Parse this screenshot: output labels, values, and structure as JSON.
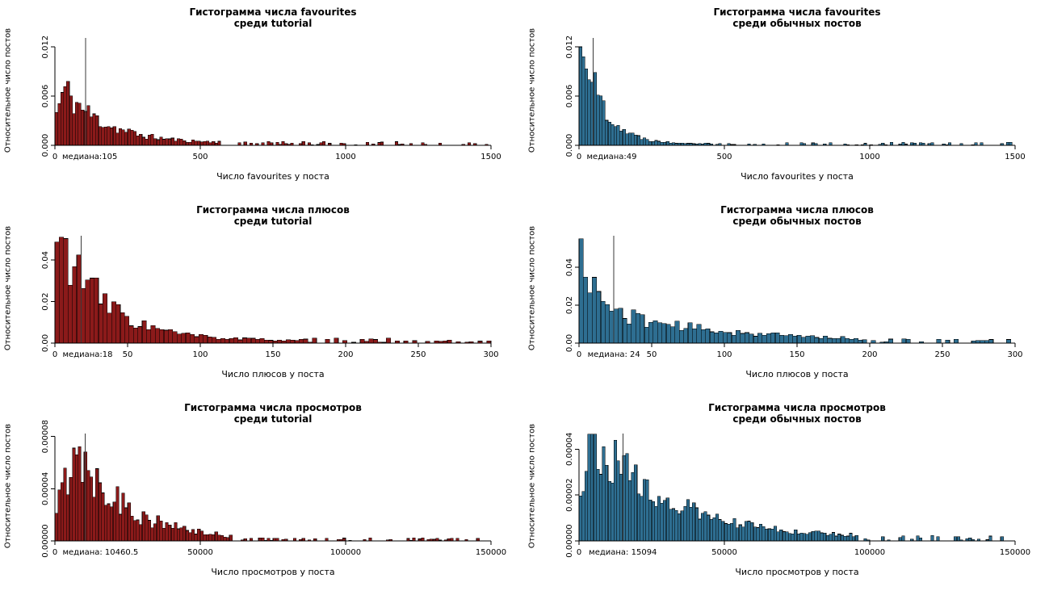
{
  "page": {
    "background": "#ffffff"
  },
  "chart_data": [
    {
      "type": "bar",
      "subtype": "histogram",
      "title": "Гистограмма числа favourites среди tutorial",
      "title_line1": "Гистограмма числа favourites",
      "title_line2": "среди tutorial",
      "xlabel": "Число favourites у поста",
      "ylabel": "Относительное число постов",
      "bar_color": "#8B1A1A",
      "bar_border": "#000000",
      "xlim": [
        0,
        1500
      ],
      "ylim_render": 0.0133,
      "xticks": [
        0,
        500,
        1000,
        1500
      ],
      "xtick_labels": [
        "0",
        "500",
        "1000",
        "1500"
      ],
      "yticks": [
        0,
        0.006,
        0.012
      ],
      "ytick_labels": [
        "0.000",
        "0.006",
        "0.012"
      ],
      "median": 105,
      "median_label": "медиана:105",
      "density_estimate": {
        "x": [
          0,
          30,
          50,
          105,
          200,
          300,
          500,
          800,
          1000,
          1500
        ],
        "y": [
          0.004,
          0.0065,
          0.006,
          0.0035,
          0.002,
          0.001,
          0.0004,
          0.0002,
          0.00015,
          5e-05
        ]
      },
      "bins": {
        "n": 150,
        "mode": 3,
        "start": 0.0035,
        "peak": 0.0065,
        "tau": 14,
        "noise": 0.35,
        "tail": 0.00025,
        "sparse_after": 55,
        "sparse_prob": 0.55,
        "cap": 0.0078,
        "seed": 11
      }
    },
    {
      "type": "bar",
      "subtype": "histogram",
      "title": "Гистограмма числа favourites среди обычных постов",
      "title_line1": "Гистограмма числа favourites",
      "title_line2": "среди обычных постов",
      "xlabel": "Число favourites у поста",
      "ylabel": "Относительное число постов",
      "bar_color": "#2E6E91",
      "bar_border": "#000000",
      "xlim": [
        0,
        1500
      ],
      "ylim_render": 0.0133,
      "xticks": [
        0,
        500,
        1000,
        1500
      ],
      "xtick_labels": [
        "0",
        "500",
        "1000",
        "1500"
      ],
      "yticks": [
        0,
        0.006,
        0.012
      ],
      "ytick_labels": [
        "0.000",
        "0.006",
        "0.012"
      ],
      "median": 49,
      "median_label": "медиана:49",
      "density_estimate": {
        "x": [
          0,
          10,
          49,
          100,
          200,
          300,
          500,
          1000,
          1500
        ],
        "y": [
          0.0113,
          0.0125,
          0.0068,
          0.003,
          0.0009,
          0.0004,
          0.0002,
          0.0001,
          5e-05
        ]
      },
      "bins": {
        "n": 150,
        "mode": 1,
        "start": 0.01,
        "peak": 0.0125,
        "tau": 7,
        "noise": 0.28,
        "tail": 0.0002,
        "sparse_after": 45,
        "sparse_prob": 0.55,
        "cap": 0.0127,
        "seed": 22
      }
    },
    {
      "type": "bar",
      "subtype": "histogram",
      "title": "Гистограмма числа плюсов среди tutorial",
      "title_line1": "Гистограмма числа плюсов",
      "title_line2": "среди tutorial",
      "xlabel": "Число плюсов у поста",
      "ylabel": "Относительное число постов",
      "bar_color": "#8B1A1A",
      "bar_border": "#000000",
      "xlim": [
        0,
        300
      ],
      "ylim_render": 0.0525,
      "xticks": [
        0,
        50,
        100,
        150,
        200,
        250,
        300
      ],
      "xtick_labels": [
        "0",
        "50",
        "100",
        "150",
        "200",
        "250",
        "300"
      ],
      "yticks": [
        0,
        0.02,
        0.04
      ],
      "ytick_labels": [
        "0.00",
        "0.02",
        "0.04"
      ],
      "median": 18,
      "median_label": "медиана:18",
      "density_estimate": {
        "x": [
          0,
          5,
          18,
          50,
          100,
          150,
          200,
          300
        ],
        "y": [
          0.047,
          0.05,
          0.024,
          0.011,
          0.0025,
          0.0012,
          0.0008,
          0.0003
        ]
      },
      "bins": {
        "n": 100,
        "mode": 1,
        "start": 0.044,
        "peak": 0.05,
        "tau": 10,
        "noise": 0.35,
        "tail": 0.0012,
        "sparse_after": 55,
        "sparse_prob": 0.5,
        "cap": 0.051,
        "seed": 33
      }
    },
    {
      "type": "bar",
      "subtype": "histogram",
      "title": "Гистограмма числа плюсов среди обычных постов",
      "title_line1": "Гистограмма числа плюсов",
      "title_line2": "среди обычных постов",
      "xlabel": "Число плюсов у поста",
      "ylabel": "Относительное число постов",
      "bar_color": "#2E6E91",
      "bar_border": "#000000",
      "xlim": [
        0,
        300
      ],
      "ylim_render": 0.0575,
      "xticks": [
        0,
        50,
        100,
        150,
        200,
        250,
        300
      ],
      "xtick_labels": [
        "0",
        "50",
        "100",
        "150",
        "200",
        "250",
        "300"
      ],
      "yticks": [
        0,
        0.02,
        0.04
      ],
      "ytick_labels": [
        "0.00",
        "0.02",
        "0.04"
      ],
      "median": 24,
      "median_label": "медиана: 24",
      "density_estimate": {
        "x": [
          0,
          3,
          24,
          50,
          100,
          150,
          200,
          300
        ],
        "y": [
          0.055,
          0.042,
          0.016,
          0.009,
          0.005,
          0.002,
          0.001,
          0.0004
        ]
      },
      "bins": {
        "n": 100,
        "mode": 0,
        "start": 0,
        "peak": 0.035,
        "tau": 2.5,
        "peak2": 0.02,
        "tau2": 24,
        "noise": 0.3,
        "tail": 0.0012,
        "sparse_after": 62,
        "sparse_prob": 0.5,
        "cap": 0.046,
        "spike0": 0.055,
        "seed": 44
      }
    },
    {
      "type": "bar",
      "subtype": "histogram",
      "title": "Гистограмма числа просмотров среди tutorial",
      "title_line1": "Гистограмма числа просмотров",
      "title_line2": "среди tutorial",
      "xlabel": "Число просмотров у поста",
      "ylabel": "Относительное число постов",
      "bar_color": "#8B1A1A",
      "bar_border": "#000000",
      "xlim": [
        0,
        150000
      ],
      "ylim_render": 8.35e-05,
      "xticks": [
        0,
        50000,
        100000,
        150000
      ],
      "xtick_labels": [
        "0",
        "50000",
        "100000",
        "150000"
      ],
      "yticks": [
        0,
        4e-05,
        8e-05
      ],
      "ytick_labels": [
        "0.00000",
        "0.00004",
        "0.00008"
      ],
      "median": 10460.5,
      "median_label": "медиана: 10460.5",
      "density_estimate": {
        "x": [
          0,
          4000,
          8000,
          10460,
          20000,
          50000,
          100000,
          150000
        ],
        "y": [
          2.2e-05,
          6e-05,
          7.5e-05,
          6.2e-05,
          3.3e-05,
          5e-06,
          2e-06,
          1e-06
        ]
      },
      "bins": {
        "n": 150,
        "mode": 7,
        "start": 1.8e-05,
        "peak": 7.5e-05,
        "tau": 16,
        "noise": 0.4,
        "tail": 1.2e-06,
        "sparse_after": 60,
        "sparse_prob": 0.55,
        "cap": 7.9e-05,
        "seed": 55
      }
    },
    {
      "type": "bar",
      "subtype": "histogram",
      "title": "Гистограмма числа просмотров среди обычных постов",
      "title_line1": "Гистограмма числа просмотров",
      "title_line2": "среди обычных постов",
      "xlabel": "Число просмотров у поста",
      "ylabel": "Относительное число постов",
      "bar_color": "#2E6E91",
      "bar_border": "#000000",
      "xlim": [
        0,
        150000
      ],
      "ylim_render": 4.75e-05,
      "xticks": [
        0,
        50000,
        100000,
        150000
      ],
      "xtick_labels": [
        "0",
        "50000",
        "100000",
        "150000"
      ],
      "yticks": [
        0,
        2e-05,
        4e-05
      ],
      "ytick_labels": [
        "0.00000",
        "0.00002",
        "0.00004"
      ],
      "median": 15094,
      "median_label": "медиана: 15094",
      "density_estimate": {
        "x": [
          0,
          3000,
          6000,
          15094,
          30000,
          50000,
          100000,
          150000
        ],
        "y": [
          2.3e-05,
          4.4e-05,
          4.5e-05,
          3e-05,
          1.7e-05,
          8e-06,
          2e-06,
          1e-06
        ]
      },
      "bins": {
        "n": 150,
        "mode": 4,
        "start": 2.2e-05,
        "peak": 4.5e-05,
        "tau": 26,
        "noise": 0.3,
        "tail": 1.2e-06,
        "sparse_after": 95,
        "sparse_prob": 0.5,
        "cap": 4.65e-05,
        "seed": 66
      }
    }
  ]
}
